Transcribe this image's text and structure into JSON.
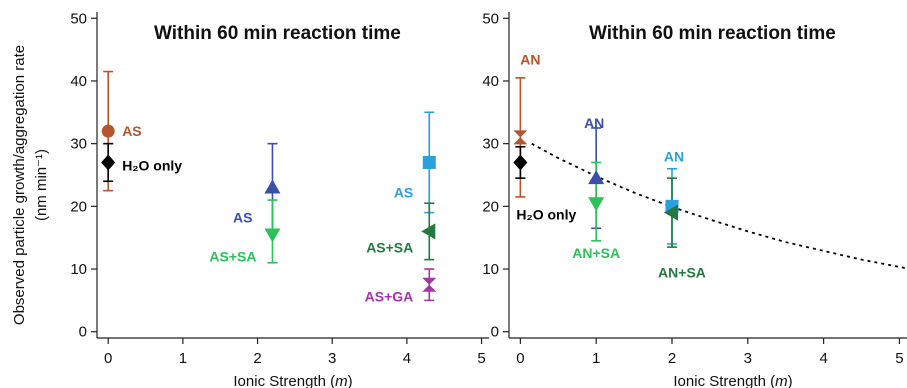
{
  "figure": {
    "ylabel_main": "Observed particle growth/aggregation rate",
    "ylabel_unit": "(nm min⁻¹)"
  },
  "chart_data": [
    {
      "type": "scatter",
      "title": "Within 60 min reaction time",
      "xlabel": "Ionic Strength (m)",
      "ylabel": "Observed particle growth/aggregation rate (nm min⁻¹)",
      "xlim": [
        -0.15,
        5.1
      ],
      "ylim": [
        -1,
        51
      ],
      "xticks": [
        0,
        1,
        2,
        3,
        4,
        5
      ],
      "yticks": [
        0,
        10,
        20,
        30,
        40,
        50
      ],
      "grid": false,
      "series": [
        {
          "name": "AS",
          "label": "AS",
          "color": "#b5542d",
          "marker": "circle",
          "x": 0.0,
          "y": 32,
          "ylo": 22.5,
          "yhi": 41.5,
          "label_dx": 14,
          "label_dy": 0,
          "anchor": "start"
        },
        {
          "name": "H2O only",
          "label": "H₂O  only",
          "color": "#000000",
          "marker": "diamond",
          "x": 0.0,
          "y": 27,
          "ylo": 24,
          "yhi": 30,
          "label_dx": 14,
          "label_dy": 3,
          "anchor": "start"
        },
        {
          "name": "AS",
          "label": "AS",
          "color": "#3b4fa8",
          "marker": "triangle-up",
          "x": 2.2,
          "y": 23,
          "ylo": 16,
          "yhi": 30,
          "label_dx": -20,
          "label_dy": 30,
          "anchor": "end"
        },
        {
          "name": "AS+SA",
          "label": "AS+SA",
          "color": "#2ec05a",
          "marker": "triangle-down",
          "x": 2.2,
          "y": 15.5,
          "ylo": 11,
          "yhi": 21,
          "label_dx": -16,
          "label_dy": 22,
          "anchor": "end"
        },
        {
          "name": "AS",
          "label": "AS",
          "color": "#2aa0dc",
          "marker": "square",
          "x": 4.3,
          "y": 27,
          "ylo": 19,
          "yhi": 35,
          "label_dx": -16,
          "label_dy": 30,
          "anchor": "end"
        },
        {
          "name": "AS+SA",
          "label": "AS+SA",
          "color": "#227a40",
          "marker": "triangle-left",
          "x": 4.3,
          "y": 16,
          "ylo": 11.5,
          "yhi": 20.5,
          "label_dx": -16,
          "label_dy": 16,
          "anchor": "end"
        },
        {
          "name": "AS+GA",
          "label": "AS+GA",
          "color": "#a534a8",
          "marker": "bowtie",
          "x": 4.3,
          "y": 7.5,
          "ylo": 5,
          "yhi": 10,
          "label_dx": -16,
          "label_dy": 12,
          "anchor": "end"
        }
      ]
    },
    {
      "type": "scatter",
      "title": "Within 60 min reaction time",
      "xlabel": "Ionic Strength (m)",
      "ylabel": "",
      "xlim": [
        -0.15,
        5.1
      ],
      "ylim": [
        -1,
        51
      ],
      "xticks": [
        0,
        1,
        2,
        3,
        4,
        5
      ],
      "yticks": [
        0,
        10,
        20,
        30,
        40,
        50
      ],
      "grid": false,
      "fit_line": {
        "style": "dashed",
        "color": "#000000",
        "x": [
          0.15,
          0.5,
          1.0,
          1.5,
          2.0,
          2.5,
          3.0,
          3.5,
          4.0,
          4.5,
          5.1
        ],
        "y": [
          30.0,
          27.7,
          24.8,
          22.2,
          19.9,
          17.9,
          16.0,
          14.3,
          12.9,
          11.5,
          10.1
        ]
      },
      "series": [
        {
          "name": "AN",
          "label": "AN",
          "color": "#b5542d",
          "marker": "bowtie",
          "x": 0.0,
          "y": 31,
          "ylo": 21.5,
          "yhi": 40.5,
          "label_dx": 10,
          "label_dy": -78,
          "anchor": "middle"
        },
        {
          "name": "H2O only",
          "label": "H₂O only",
          "color": "#000000",
          "marker": "diamond",
          "x": 0.0,
          "y": 27,
          "ylo": 24.5,
          "yhi": 29.5,
          "label_dx": -4,
          "label_dy": 52,
          "anchor": "start"
        },
        {
          "name": "AN",
          "label": "AN",
          "color": "#3b4fa8",
          "marker": "triangle-up",
          "x": 1.0,
          "y": 24.5,
          "ylo": 16.5,
          "yhi": 32.5,
          "label_dx": -2,
          "label_dy": -55,
          "anchor": "middle"
        },
        {
          "name": "AN+SA",
          "label": "AN+SA",
          "color": "#2ec05a",
          "marker": "triangle-down",
          "x": 1.0,
          "y": 20.5,
          "ylo": 14.5,
          "yhi": 27,
          "label_dx": 0,
          "label_dy": 50,
          "anchor": "middle"
        },
        {
          "name": "AN",
          "label": "AN",
          "color": "#2aa0dc",
          "marker": "square",
          "x": 2.0,
          "y": 20,
          "ylo": 14,
          "yhi": 26,
          "label_dx": 2,
          "label_dy": -50,
          "anchor": "middle"
        },
        {
          "name": "AN+SA",
          "label": "AN+SA",
          "color": "#227a40",
          "marker": "triangle-left",
          "x": 2.0,
          "y": 19,
          "ylo": 13.5,
          "yhi": 24.5,
          "label_dx": 10,
          "label_dy": 60,
          "anchor": "middle"
        }
      ]
    }
  ]
}
